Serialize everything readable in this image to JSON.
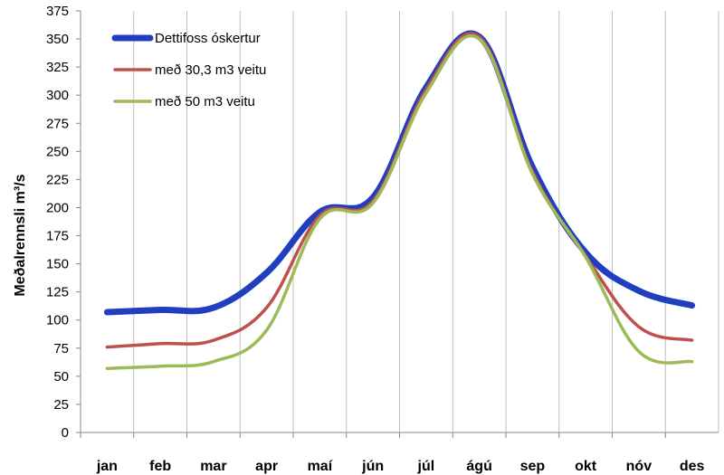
{
  "chart_data": {
    "type": "line",
    "title": "",
    "xlabel": "",
    "ylabel": "Meðalrennsli m³/s",
    "ylim": [
      0,
      375
    ],
    "yticks": [
      0,
      25,
      50,
      75,
      100,
      125,
      150,
      175,
      200,
      225,
      250,
      275,
      300,
      325,
      350,
      375
    ],
    "categories": [
      "jan",
      "feb",
      "mar",
      "apr",
      "maí",
      "jún",
      "júl",
      "ágú",
      "sep",
      "okt",
      "nóv",
      "des"
    ],
    "grid": "vertical",
    "legend_position": "top-left",
    "series": [
      {
        "name": "Dettifoss óskertur",
        "color": "#1f3fbf",
        "values": [
          107,
          109,
          111,
          142,
          196,
          209,
          307,
          352,
          236,
          160,
          126,
          113
        ]
      },
      {
        "name": "með 30,3 m3 veitu",
        "color": "#c0504d",
        "values": [
          76,
          79,
          82,
          111,
          193,
          206,
          305,
          352,
          232,
          157,
          94,
          82
        ]
      },
      {
        "name": "með 50 m3 veitu",
        "color": "#9bbb59",
        "values": [
          57,
          59,
          63,
          91,
          190,
          204,
          302,
          350,
          230,
          156,
          72,
          63
        ]
      }
    ]
  }
}
